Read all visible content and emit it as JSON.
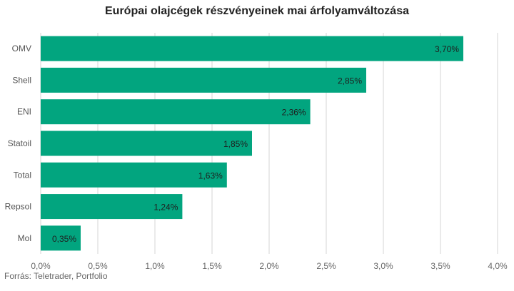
{
  "chart_data": {
    "type": "bar",
    "orientation": "horizontal",
    "title": "Európai olajcégek részvényeinek mai árfolyamváltozása",
    "source": "Forrás: Teletrader, Portfolio",
    "categories": [
      "OMV",
      "Shell",
      "ENI",
      "Statoil",
      "Total",
      "Repsol",
      "Mol"
    ],
    "values": [
      3.7,
      2.85,
      2.36,
      1.85,
      1.63,
      1.24,
      0.35
    ],
    "value_labels": [
      "3,70%",
      "2,85%",
      "2,36%",
      "1,85%",
      "1,63%",
      "1,24%",
      "0,35%"
    ],
    "xlim": [
      0,
      4.0
    ],
    "x_ticks": [
      0,
      0.5,
      1.0,
      1.5,
      2.0,
      2.5,
      3.0,
      3.5,
      4.0
    ],
    "x_tick_labels": [
      "0,0%",
      "0,5%",
      "1,0%",
      "1,5%",
      "2,0%",
      "2,5%",
      "3,0%",
      "3,5%",
      "4,0%"
    ],
    "grid": true,
    "bar_color": "#02a57f",
    "grid_color": "#d6d6d6"
  }
}
